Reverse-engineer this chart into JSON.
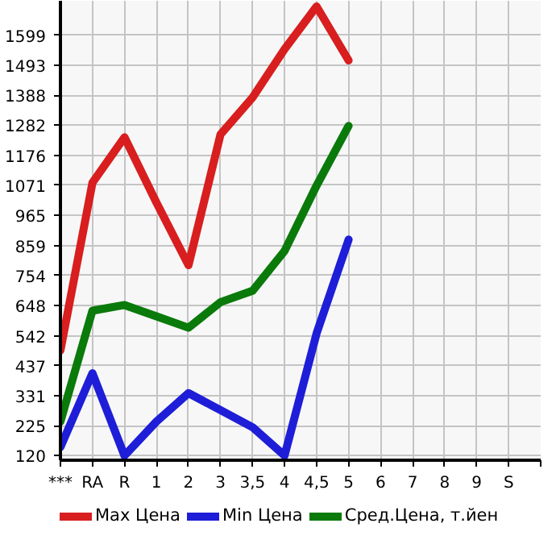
{
  "chart_data": {
    "type": "line",
    "categories": [
      "***",
      "RA",
      "R",
      "1",
      "2",
      "3",
      "3,5",
      "4",
      "4,5",
      "5",
      "6",
      "7",
      "8",
      "9",
      "S",
      null
    ],
    "series": [
      {
        "name": "Max Цена",
        "color": "#d81e1e",
        "values": [
          490,
          1080,
          1240,
          1010,
          790,
          1250,
          1380,
          1550,
          1700,
          1510,
          null,
          null,
          null,
          null,
          null,
          null
        ]
      },
      {
        "name": "Min Цена",
        "color": "#1e1ed8",
        "values": [
          150,
          410,
          120,
          240,
          340,
          280,
          220,
          120,
          550,
          880,
          null,
          null,
          null,
          null,
          null,
          null
        ]
      },
      {
        "name": "Сред.Цена, т.йен",
        "color": "#0a7a0a",
        "values": [
          240,
          630,
          650,
          610,
          570,
          660,
          700,
          840,
          1070,
          1280,
          null,
          null,
          null,
          null,
          null,
          null
        ]
      }
    ],
    "ylim": [
      104,
      1720
    ],
    "yticks": [
      120,
      225,
      331,
      437,
      542,
      648,
      754,
      859,
      965,
      1071,
      1176,
      1282,
      1388,
      1493,
      1599
    ],
    "grid": true,
    "legend": "bottom",
    "line_style": "solid"
  }
}
